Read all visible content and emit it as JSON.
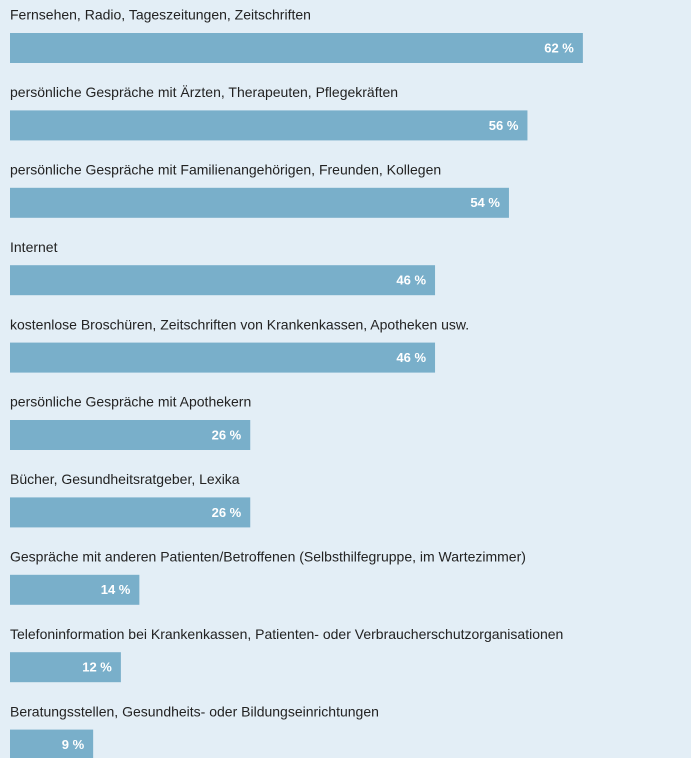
{
  "chart_data": {
    "type": "bar",
    "orientation": "horizontal",
    "categories": [
      "Fernsehen, Radio, Tageszeitungen, Zeitschriften",
      "persönliche Gespräche mit Ärzten, Therapeuten, Pflegekräften",
      "persönliche Gespräche mit Familienangehörigen, Freunden, Kollegen",
      "Internet",
      "kostenlose Broschüren, Zeitschriften von Krankenkassen, Apotheken usw.",
      "persönliche Gespräche mit Apothekern",
      "Bücher, Gesundheitsratgeber, Lexika",
      "Gespräche mit anderen Patienten/Betroffenen (Selbsthilfegruppe, im Wartezimmer)",
      "Telefoninformation bei Krankenkassen, Patienten- oder Verbraucherschutzorganisationen",
      "Beratungsstellen, Gesundheits- oder Bildungseinrichtungen"
    ],
    "values": [
      62,
      56,
      54,
      46,
      46,
      26,
      26,
      14,
      12,
      9
    ],
    "value_labels": [
      "62 %",
      "56 %",
      "54 %",
      "46 %",
      "46 %",
      "26 %",
      "26 %",
      "14 %",
      "12 %",
      "9 %"
    ],
    "color": "#79afca"
  }
}
